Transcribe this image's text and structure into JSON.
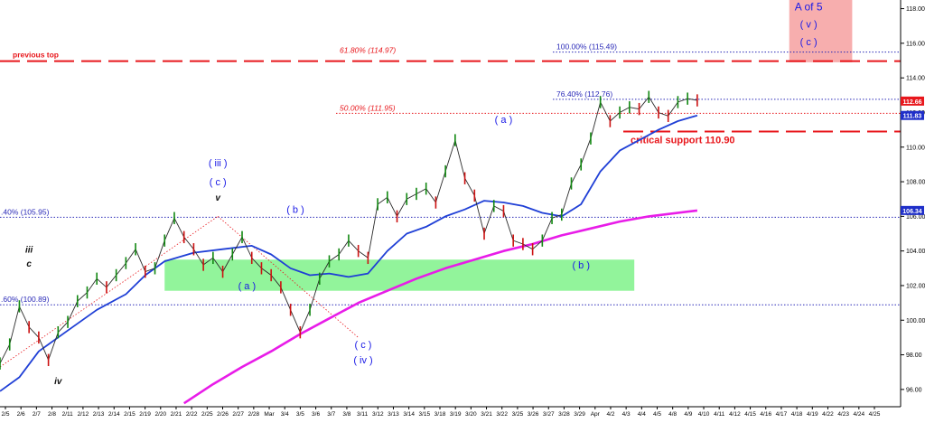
{
  "chart_data": {
    "type": "line",
    "symbol": "",
    "y_axis": {
      "min": 95.0,
      "max": 118.5,
      "side": "right",
      "ticks": [
        96.0,
        98.0,
        100.0,
        102.0,
        104.0,
        106.0,
        108.0,
        110.0,
        112.0,
        114.0,
        116.0,
        118.0
      ],
      "tick_labels": [
        "96.00",
        "98.00",
        "100.00",
        "102.00",
        "104.00",
        "106.00",
        "108.00",
        "110.00",
        "112.00",
        "114.00",
        "116.00",
        "118.00"
      ]
    },
    "x_axis": {
      "tick_labels": [
        "2/5",
        "2/6",
        "2/7",
        "2/8",
        "2/11",
        "2/12",
        "2/13",
        "2/14",
        "2/15",
        "2/19",
        "2/20",
        "2/21",
        "2/22",
        "2/25",
        "2/26",
        "2/27",
        "2/28",
        "Mar",
        "3/4",
        "3/5",
        "3/6",
        "3/7",
        "3/8",
        "3/11",
        "3/12",
        "3/13",
        "3/14",
        "3/15",
        "3/18",
        "3/19",
        "3/20",
        "3/21",
        "3/22",
        "3/25",
        "3/26",
        "3/27",
        "3/28",
        "3/29",
        "Apr",
        "4/2",
        "4/3",
        "4/4",
        "4/5",
        "4/8",
        "4/9",
        "4/10",
        "4/11",
        "4/12",
        "4/15",
        "4/16",
        "4/17",
        "4/18",
        "4/19",
        "4/22",
        "4/23",
        "4/24",
        "4/25"
      ]
    },
    "price_series": {
      "name": "",
      "color": "#000000",
      "points": [
        [
          0,
          97.5
        ],
        [
          2,
          98.6
        ],
        [
          4,
          100.8
        ],
        [
          6,
          99.6
        ],
        [
          8,
          99.0
        ],
        [
          10,
          97.7
        ],
        [
          12,
          99.3
        ],
        [
          14,
          99.9
        ],
        [
          16,
          101.1
        ],
        [
          18,
          101.6
        ],
        [
          20,
          102.4
        ],
        [
          22,
          101.9
        ],
        [
          24,
          102.6
        ],
        [
          26,
          103.3
        ],
        [
          28,
          104.1
        ],
        [
          30,
          102.8
        ],
        [
          32,
          103.0
        ],
        [
          34,
          104.6
        ],
        [
          36,
          105.9
        ],
        [
          38,
          104.8
        ],
        [
          40,
          104.1
        ],
        [
          42,
          103.2
        ],
        [
          44,
          103.6
        ],
        [
          46,
          102.8
        ],
        [
          48,
          103.8
        ],
        [
          50,
          104.8
        ],
        [
          52,
          103.6
        ],
        [
          54,
          103.0
        ],
        [
          56,
          102.6
        ],
        [
          58,
          101.9
        ],
        [
          60,
          100.6
        ],
        [
          62,
          99.3
        ],
        [
          64,
          100.6
        ],
        [
          66,
          102.4
        ],
        [
          68,
          103.4
        ],
        [
          70,
          103.8
        ],
        [
          72,
          104.6
        ],
        [
          74,
          104.0
        ],
        [
          76,
          103.6
        ],
        [
          78,
          106.7
        ],
        [
          80,
          107.1
        ],
        [
          82,
          106.0
        ],
        [
          84,
          107.0
        ],
        [
          86,
          107.3
        ],
        [
          88,
          107.6
        ],
        [
          90,
          106.8
        ],
        [
          92,
          108.6
        ],
        [
          94,
          110.4
        ],
        [
          96,
          108.2
        ],
        [
          98,
          107.2
        ],
        [
          100,
          105.0
        ],
        [
          102,
          106.6
        ],
        [
          104,
          106.3
        ],
        [
          106,
          104.6
        ],
        [
          108,
          104.4
        ],
        [
          110,
          104.1
        ],
        [
          112,
          104.6
        ],
        [
          114,
          105.9
        ],
        [
          116,
          106.1
        ],
        [
          118,
          107.9
        ],
        [
          120,
          109.0
        ],
        [
          122,
          110.5
        ],
        [
          124,
          112.6
        ],
        [
          126,
          111.5
        ],
        [
          128,
          112.0
        ],
        [
          130,
          112.3
        ],
        [
          132,
          112.2
        ],
        [
          134,
          112.9
        ],
        [
          136,
          112.0
        ],
        [
          138,
          111.8
        ],
        [
          140,
          112.6
        ],
        [
          142,
          112.8
        ],
        [
          144,
          112.7
        ]
      ]
    },
    "moving_averages": [
      {
        "name": "",
        "color": "#1f3fd6",
        "points": [
          [
            0,
            95.9
          ],
          [
            4,
            96.7
          ],
          [
            8,
            98.2
          ],
          [
            14,
            99.4
          ],
          [
            20,
            100.6
          ],
          [
            26,
            101.5
          ],
          [
            30,
            102.6
          ],
          [
            34,
            103.4
          ],
          [
            40,
            103.9
          ],
          [
            46,
            104.1
          ],
          [
            52,
            104.3
          ],
          [
            56,
            103.8
          ],
          [
            60,
            103.0
          ],
          [
            64,
            102.6
          ],
          [
            68,
            102.7
          ],
          [
            72,
            102.5
          ],
          [
            76,
            102.7
          ],
          [
            80,
            104.0
          ],
          [
            84,
            105.0
          ],
          [
            88,
            105.4
          ],
          [
            92,
            106.0
          ],
          [
            96,
            106.4
          ],
          [
            100,
            106.9
          ],
          [
            104,
            106.8
          ],
          [
            108,
            106.6
          ],
          [
            112,
            106.2
          ],
          [
            116,
            106.0
          ],
          [
            120,
            106.7
          ],
          [
            124,
            108.6
          ],
          [
            128,
            109.8
          ],
          [
            132,
            110.4
          ],
          [
            136,
            111.0
          ],
          [
            140,
            111.5
          ],
          [
            144,
            111.83
          ]
        ]
      },
      {
        "name": "",
        "color": "#e81ce8",
        "points": [
          [
            38,
            95.2
          ],
          [
            44,
            96.3
          ],
          [
            50,
            97.3
          ],
          [
            56,
            98.2
          ],
          [
            62,
            99.2
          ],
          [
            68,
            100.1
          ],
          [
            74,
            101.0
          ],
          [
            80,
            101.7
          ],
          [
            86,
            102.4
          ],
          [
            92,
            103.0
          ],
          [
            98,
            103.5
          ],
          [
            104,
            104.0
          ],
          [
            110,
            104.4
          ],
          [
            116,
            104.9
          ],
          [
            122,
            105.3
          ],
          [
            128,
            105.7
          ],
          [
            134,
            106.0
          ],
          [
            144,
            106.34
          ]
        ]
      }
    ],
    "price_markers": [
      {
        "label": "112.66",
        "value": 112.66,
        "bg": "#e8171c",
        "fg": "#ffffff"
      },
      {
        "label": "111.83",
        "value": 111.83,
        "bg": "#1f2fc9",
        "fg": "#ffffff"
      },
      {
        "label": "106.34",
        "value": 106.34,
        "bg": "#1f2fc9",
        "fg": "#ffffff"
      }
    ],
    "horizontal_lines": [
      {
        "value": 114.97,
        "style": "long-dash",
        "color": "#e8171c",
        "label": "previous top",
        "label_color": "#e8171c"
      },
      {
        "value": 115.49,
        "style": "dotted",
        "color": "#2a2ab8",
        "label": "100.00% (115.49)",
        "label_color": "#2a2ab8"
      },
      {
        "value": 114.97,
        "style": "none",
        "color": "#e8171c",
        "label": "61.80% (114.97)",
        "label_color": "#e8171c"
      },
      {
        "value": 112.76,
        "style": "dotted",
        "color": "#2a2ab8",
        "label": "76.40% (112.76)",
        "label_color": "#2a2ab8"
      },
      {
        "value": 111.95,
        "style": "dotted",
        "color": "#e8171c",
        "label": "50.00% (111.95)",
        "label_color": "#e8171c"
      },
      {
        "value": 110.9,
        "style": "long-dash",
        "color": "#e8171c",
        "label": "critical support 110.90",
        "label_color": "#e8171c"
      },
      {
        "value": 105.95,
        "style": "dotted",
        "color": "#2a2ab8",
        "label": ".40% (105.95)",
        "label_color": "#2a2ab8"
      },
      {
        "value": 100.89,
        "style": "dotted",
        "color": "#2a2ab8",
        "label": ".60% (100.89)",
        "label_color": "#2a2ab8"
      }
    ],
    "zones": [
      {
        "name": "",
        "color": "#7ff28a",
        "x0": 34,
        "x1": 131,
        "y0": 101.7,
        "y1": 103.5
      },
      {
        "name": "",
        "color": "#f6a0a0",
        "x0": 163,
        "x1": 176,
        "y0": 114.9,
        "y1": 118.5
      }
    ],
    "wave_labels": [
      {
        "text": "( iii )",
        "x": 45,
        "y": 108.9,
        "color": "#1a1ae6"
      },
      {
        "text": "( c )",
        "x": 45,
        "y": 107.8,
        "color": "#1a1ae6"
      },
      {
        "text": "v",
        "x": 45,
        "y": 106.9,
        "color": "#111111",
        "italic": true
      },
      {
        "text": "iii",
        "x": 6,
        "y": 103.9,
        "color": "#111111",
        "italic": true
      },
      {
        "text": "c",
        "x": 6,
        "y": 103.1,
        "color": "#111111",
        "italic": true
      },
      {
        "text": "iv",
        "x": 12,
        "y": 96.3,
        "color": "#111111",
        "italic": true
      },
      {
        "text": "( b )",
        "x": 61,
        "y": 106.2,
        "color": "#1a1ae6"
      },
      {
        "text": "( a )",
        "x": 51,
        "y": 101.8,
        "color": "#1a1ae6"
      },
      {
        "text": "( c )",
        "x": 75,
        "y": 98.4,
        "color": "#1a1ae6"
      },
      {
        "text": "( iv )",
        "x": 75,
        "y": 97.5,
        "color": "#1a1ae6"
      },
      {
        "text": "( a )",
        "x": 104,
        "y": 111.4,
        "color": "#1a1ae6"
      },
      {
        "text": "( b )",
        "x": 120,
        "y": 103.0,
        "color": "#1a1ae6"
      },
      {
        "text": "A of 5",
        "x": 167,
        "y": 117.9,
        "color": "#1a1ae6"
      },
      {
        "text": "( v )",
        "x": 167,
        "y": 116.9,
        "color": "#1a1ae6"
      },
      {
        "text": "( c )",
        "x": 167,
        "y": 115.9,
        "color": "#1a1ae6"
      }
    ],
    "dotted_channel": [
      {
        "from": [
          0,
          97.3
        ],
        "to": [
          45,
          106.0
        ],
        "color": "#e8171c"
      },
      {
        "from": [
          45,
          106.0
        ],
        "to": [
          74,
          99.0
        ],
        "color": "#e8171c"
      }
    ],
    "grid": false,
    "legend": "none"
  }
}
